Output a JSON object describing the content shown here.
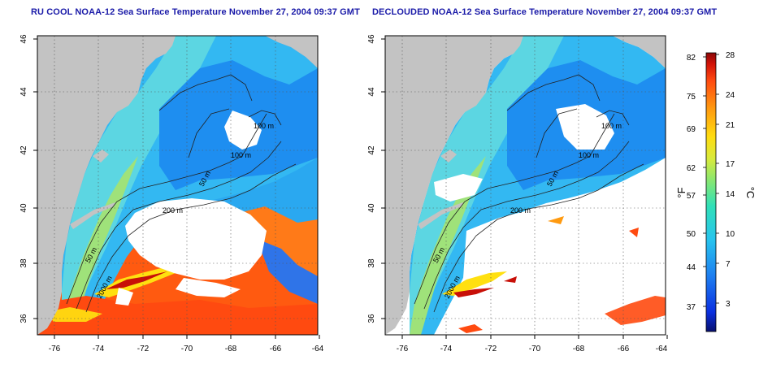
{
  "maps": [
    {
      "id": "rucool",
      "title": "RU COOL NOAA-12 Sea Surface Temperature November 27, 2004 09:37 GMT",
      "x_ticks": [
        "-76",
        "-74",
        "-72",
        "-70",
        "-68",
        "-66",
        "-64"
      ],
      "y_ticks": [
        "46",
        "44",
        "42",
        "40",
        "38",
        "36"
      ],
      "isobath_labels": [
        "100 m",
        "100 m",
        "50 m",
        "200 m",
        "50 m",
        "2000 m"
      ]
    },
    {
      "id": "declouded",
      "title": "DECLOUDED NOAA-12 Sea Surface Temperature November 27, 2004 09:37 GMT",
      "x_ticks": [
        "-76",
        "-74",
        "-72",
        "-70",
        "-68",
        "-66",
        "-64"
      ],
      "y_ticks": [
        "46",
        "44",
        "42",
        "40",
        "38",
        "36"
      ],
      "isobath_labels": [
        "100 m",
        "100 m",
        "50 m",
        "200 m",
        "50 m",
        "2000 m"
      ]
    }
  ],
  "colorbar": {
    "fahrenheit_label": "°F",
    "celsius_label": "°C",
    "fahrenheit_ticks": [
      "82",
      "75",
      "69",
      "62",
      "57",
      "50",
      "44",
      "37"
    ],
    "celsius_ticks": [
      "28",
      "24",
      "21",
      "17",
      "14",
      "10",
      "7",
      "3"
    ],
    "range_c": [
      0,
      28
    ]
  },
  "colors": {
    "land": "#c3c3c3",
    "cloud": "#ffffff",
    "title": "#1a1aa8",
    "gradient": [
      "#08106e",
      "#0a2fe0",
      "#1e7ff0",
      "#27c4ee",
      "#30e0b8",
      "#7ce67a",
      "#d8ea3c",
      "#ffdc10",
      "#ff9a10",
      "#ff4a10",
      "#d21208",
      "#8a0808"
    ]
  }
}
